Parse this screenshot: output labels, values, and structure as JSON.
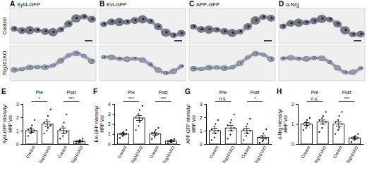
{
  "images": {
    "rows": [
      "Control",
      "Tsg101KO"
    ],
    "panels": [
      {
        "panel": "A",
        "title": "Syt4-GFP"
      },
      {
        "panel": "B",
        "title": "Evi-GFP"
      },
      {
        "panel": "C",
        "title": "APP-GFP"
      },
      {
        "panel": "D",
        "title": "α-Nrg"
      }
    ]
  },
  "chart_data": [
    {
      "type": "bar",
      "panel": "E",
      "y_label": "Syt4-GFP intensity/HRP Vol",
      "color": "#ffffff",
      "categories": [
        "Control",
        "Tsg101KO",
        "Control",
        "Tsg101KO"
      ],
      "values": [
        1.0,
        1.5,
        1.0,
        0.2
      ],
      "errors": [
        0.12,
        0.18,
        0.2,
        0.04
      ],
      "points": [
        [
          0.6,
          0.8,
          0.9,
          1.0,
          1.1,
          1.2,
          1.4,
          1.8
        ],
        [
          0.8,
          1.0,
          1.2,
          1.4,
          1.6,
          1.8,
          2.1,
          2.6
        ],
        [
          0.4,
          0.6,
          0.8,
          0.9,
          1.1,
          1.3,
          1.6,
          2.2
        ],
        [
          0.05,
          0.1,
          0.15,
          0.2,
          0.2,
          0.25,
          0.3,
          0.4
        ]
      ],
      "groups": [
        "Pre",
        "Post"
      ],
      "significance": [
        "*",
        "***"
      ],
      "ylim": [
        0,
        3
      ],
      "yticks": [
        0,
        1,
        2,
        3
      ]
    },
    {
      "type": "bar",
      "panel": "F",
      "y_label": "Evi-GFP intensity/HRP Vol",
      "color": "#ffffff",
      "categories": [
        "Control",
        "Tsg101KO",
        "Control",
        "Tsg101KO"
      ],
      "values": [
        1.0,
        2.6,
        1.0,
        0.3
      ],
      "errors": [
        0.08,
        0.25,
        0.12,
        0.05
      ],
      "points": [
        [
          0.6,
          0.8,
          0.9,
          1.0,
          1.0,
          1.1,
          1.2,
          1.4
        ],
        [
          1.4,
          1.8,
          2.2,
          2.5,
          2.7,
          3.0,
          3.4,
          3.8
        ],
        [
          0.5,
          0.7,
          0.9,
          1.0,
          1.1,
          1.2,
          1.4,
          1.6
        ],
        [
          0.1,
          0.2,
          0.2,
          0.3,
          0.3,
          0.4,
          0.4,
          0.5
        ]
      ],
      "groups": [
        "Pre",
        "Post"
      ],
      "significance": [
        "***",
        "***"
      ],
      "ylim": [
        0,
        4
      ],
      "yticks": [
        0,
        1,
        2,
        3,
        4
      ]
    },
    {
      "type": "bar",
      "panel": "G",
      "y_label": "APP-GFP intensity/HRP Vol",
      "color": "#ffffff",
      "categories": [
        "Control",
        "Tsg101KO",
        "Control",
        "Tsg101KO"
      ],
      "values": [
        1.0,
        1.2,
        1.0,
        0.5
      ],
      "errors": [
        0.18,
        0.2,
        0.18,
        0.1
      ],
      "points": [
        [
          0.3,
          0.5,
          0.8,
          1.0,
          1.1,
          1.3,
          1.5,
          1.8
        ],
        [
          0.4,
          0.7,
          1.0,
          1.2,
          1.4,
          1.6,
          1.8,
          2.2
        ],
        [
          0.3,
          0.6,
          0.8,
          1.0,
          1.1,
          1.3,
          1.5,
          1.9
        ],
        [
          0.1,
          0.2,
          0.3,
          0.4,
          0.5,
          0.6,
          0.8,
          1.1
        ]
      ],
      "groups": [
        "Pre",
        "Post"
      ],
      "significance": [
        "n.s.",
        "*"
      ],
      "ylim": [
        0,
        3
      ],
      "yticks": [
        0,
        1,
        2,
        3
      ]
    },
    {
      "type": "bar",
      "panel": "H",
      "y_label": "α-Nrg intensity/HRP Vol",
      "color": "#ffffff",
      "categories": [
        "Control",
        "Tsg101KO",
        "Control",
        "Tsg101KO"
      ],
      "values": [
        1.0,
        1.1,
        1.0,
        0.3
      ],
      "errors": [
        0.07,
        0.1,
        0.12,
        0.05
      ],
      "points": [
        [
          0.7,
          0.8,
          0.9,
          1.0,
          1.0,
          1.1,
          1.2,
          1.3
        ],
        [
          0.6,
          0.8,
          1.0,
          1.1,
          1.2,
          1.3,
          1.4,
          1.6
        ],
        [
          0.5,
          0.7,
          0.8,
          1.0,
          1.1,
          1.2,
          1.4,
          1.6
        ],
        [
          0.1,
          0.2,
          0.25,
          0.3,
          0.3,
          0.35,
          0.4,
          0.5
        ]
      ],
      "groups": [
        "Pre",
        "Post"
      ],
      "significance": [
        "n.s.",
        "***"
      ],
      "ylim": [
        0,
        2
      ],
      "yticks": [
        0,
        1,
        2
      ]
    }
  ]
}
